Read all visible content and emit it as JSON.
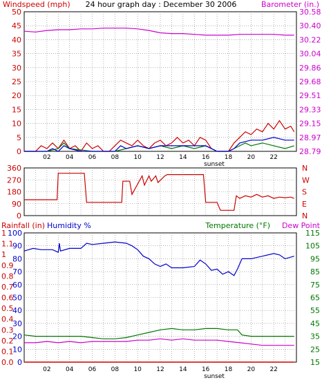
{
  "title": "24 hour graph day : December 30 2006",
  "colors": {
    "red": "#cc0000",
    "magenta": "#cc00cc",
    "blue": "#0000cc",
    "green": "#007700",
    "grid": "#808080",
    "text": "#000000"
  },
  "chart_data": [
    {
      "type": "line",
      "id": "wind_baro",
      "left_label": "Windspeed (mph)",
      "right_label": "Barometer (in.)",
      "left_ticks": [
        "50",
        "45",
        "40",
        "35",
        "30",
        "25",
        "20",
        "15",
        "10",
        "5",
        "0"
      ],
      "right_ticks": [
        "30.58",
        "30.40",
        "30.22",
        "30.04",
        "29.86",
        "29.68",
        "29.51",
        "29.33",
        "29.15",
        "28.97",
        "28.79"
      ],
      "x_ticks": [
        "02",
        "04",
        "06",
        "08",
        "10",
        "12",
        "14",
        "16",
        "18",
        "20",
        "22"
      ],
      "x_note": "sunset",
      "ylim": [
        0,
        50
      ],
      "y2lim": [
        28.79,
        30.58
      ],
      "xlim": [
        0,
        24
      ],
      "barometer": {
        "x": [
          0,
          1,
          2,
          3,
          4,
          5,
          6,
          7,
          8,
          9,
          10,
          11,
          12,
          13,
          14,
          15,
          16,
          17,
          18,
          19,
          20,
          21,
          22,
          23,
          23.8
        ],
        "y": [
          30.33,
          30.32,
          30.34,
          30.35,
          30.35,
          30.36,
          30.36,
          30.37,
          30.37,
          30.37,
          30.36,
          30.34,
          30.31,
          30.3,
          30.3,
          30.29,
          30.28,
          30.28,
          30.28,
          30.29,
          30.29,
          30.29,
          30.29,
          30.28,
          30.28
        ]
      },
      "wind_gust": {
        "x": [
          0,
          1,
          1.5,
          2,
          2.5,
          3,
          3.5,
          4,
          4.5,
          5,
          5.5,
          6,
          6.5,
          7,
          7.5,
          8,
          8.5,
          9,
          9.5,
          10,
          10.5,
          11,
          11.5,
          12,
          12.5,
          13,
          13.5,
          14,
          14.5,
          15,
          15.5,
          16,
          16.5,
          17,
          17.5,
          18,
          18.5,
          19,
          19.5,
          20,
          20.5,
          21,
          21.5,
          22,
          22.5,
          23,
          23.5,
          23.8
        ],
        "y": [
          0,
          0,
          2,
          1,
          3,
          1,
          4,
          1,
          2,
          0,
          3,
          1,
          2,
          0,
          0,
          2,
          4,
          3,
          2,
          4,
          2,
          1,
          3,
          4,
          2,
          3,
          5,
          3,
          4,
          2,
          5,
          4,
          1,
          0,
          0,
          0,
          3,
          5,
          7,
          6,
          8,
          7,
          10,
          8,
          11,
          8,
          9,
          7
        ]
      },
      "wind_avg": {
        "x": [
          0,
          2,
          2.5,
          3,
          3.5,
          4,
          5,
          6,
          8,
          8.5,
          9,
          10,
          11,
          12,
          13,
          14,
          15,
          16,
          17,
          18,
          18.5,
          19,
          20,
          21,
          22,
          23,
          23.8
        ],
        "y": [
          0,
          0,
          1,
          0,
          2,
          1,
          0,
          0,
          0,
          2,
          1,
          2,
          1,
          2,
          2,
          2,
          2,
          2,
          0,
          0,
          1,
          3,
          4,
          4,
          5,
          4,
          4
        ]
      },
      "wind_dir_index": {
        "x": [
          0,
          2,
          3,
          3.5,
          4,
          6,
          8,
          9,
          10,
          11,
          12,
          13,
          14,
          15,
          16,
          17,
          18,
          18.5,
          19,
          19.5,
          20,
          21,
          22,
          23,
          23.8
        ],
        "y": [
          0,
          0,
          1,
          3,
          1,
          0,
          0,
          1,
          2,
          1,
          2,
          1,
          2,
          1,
          2,
          0,
          0,
          1,
          2,
          3,
          2,
          3,
          2,
          1,
          2
        ]
      }
    },
    {
      "type": "line",
      "id": "direction",
      "left_ticks": [
        "360",
        "270",
        "180",
        "90",
        "0"
      ],
      "right_ticks": [
        "N",
        "W",
        "S",
        "E",
        "N"
      ],
      "ylim": [
        0,
        360
      ],
      "xlim": [
        0,
        24
      ],
      "direction": {
        "x": [
          0,
          2.9,
          3.0,
          5.3,
          5.5,
          8.6,
          8.7,
          9.3,
          9.5,
          10.4,
          10.6,
          11.0,
          11.2,
          11.6,
          11.8,
          12.4,
          12.6,
          15.8,
          16.0,
          17.0,
          17.3,
          17.5,
          18.5,
          18.7,
          19.0,
          19.5,
          20.0,
          20.5,
          21.0,
          21.5,
          22.0,
          22.5,
          23.0,
          23.5,
          23.8
        ],
        "y": [
          120,
          120,
          320,
          320,
          100,
          100,
          260,
          260,
          160,
          300,
          230,
          300,
          260,
          300,
          250,
          300,
          310,
          310,
          100,
          100,
          40,
          40,
          40,
          150,
          130,
          150,
          140,
          160,
          140,
          150,
          130,
          140,
          135,
          140,
          130
        ]
      }
    },
    {
      "type": "line",
      "id": "rain_hum_temp",
      "left_label_rain": "Rainfall (in)",
      "left_label_humidity": "Humidity %",
      "right_label_temp": "Temperature (°F)",
      "right_label_dew": "Dew Point",
      "rain_ticks": [
        "1",
        "1.1",
        "1",
        "0.9",
        "0.8",
        "0.7",
        "0.6",
        "0.5",
        "0.4",
        "0.3",
        "0.2",
        "0.1",
        "0.0"
      ],
      "humidity_ticks": [
        "100",
        "90",
        "80",
        "70",
        "60",
        "50",
        "40",
        "30",
        "20",
        "10",
        "0"
      ],
      "temp_ticks": [
        "115",
        "105",
        "95",
        "85",
        "75",
        "65",
        "55",
        "45",
        "35",
        "25",
        "15"
      ],
      "x_ticks": [
        "02",
        "04",
        "06",
        "08",
        "10",
        "12",
        "14",
        "16",
        "18",
        "20",
        "22"
      ],
      "x_note": "sunset",
      "humidity_lim": [
        0,
        100
      ],
      "temp_lim": [
        15,
        115
      ],
      "xlim": [
        0,
        24
      ],
      "humidity": {
        "x": [
          0,
          0.8,
          1.5,
          2.5,
          3.0,
          3.1,
          3.2,
          4,
          5,
          5.5,
          6,
          7,
          8,
          9,
          9.5,
          10,
          10.5,
          11,
          11.5,
          12,
          12.5,
          13,
          14,
          15,
          15.5,
          16,
          16.5,
          17,
          17.5,
          18,
          18.5,
          18.8,
          19.2,
          20,
          21,
          22,
          22.5,
          23,
          23.8
        ],
        "y": [
          86,
          88,
          87,
          87,
          85,
          92,
          86,
          88,
          88,
          92,
          91,
          92,
          93,
          92,
          90,
          87,
          82,
          80,
          76,
          74,
          76,
          73,
          73,
          74,
          79,
          76,
          71,
          72,
          68,
          70,
          67,
          72,
          80,
          80,
          82,
          84,
          83,
          80,
          82
        ]
      },
      "temperature": {
        "x": [
          0,
          1,
          2,
          3,
          4,
          5,
          6,
          7,
          8,
          9,
          10,
          11,
          12,
          13,
          14,
          15,
          16,
          17,
          18,
          18.8,
          19.2,
          20,
          21,
          22,
          23,
          23.8
        ],
        "y": [
          36,
          35,
          35,
          35,
          35,
          35,
          34,
          33,
          33,
          34,
          36,
          38,
          40,
          41,
          40,
          40,
          41,
          41,
          40,
          40,
          36,
          35,
          35,
          35,
          35,
          35
        ]
      },
      "dew_point": {
        "x": [
          0,
          1,
          2,
          3,
          4,
          5,
          6,
          7,
          8,
          9,
          10,
          11,
          12,
          13,
          14,
          15,
          16,
          17,
          18,
          19,
          20,
          21,
          22,
          23,
          23.8
        ],
        "y": [
          30,
          30,
          31,
          30,
          31,
          30,
          31,
          31,
          31,
          31,
          32,
          32,
          33,
          32,
          33,
          32,
          32,
          32,
          31,
          30,
          29,
          28,
          28,
          28,
          28
        ]
      },
      "rainfall": {
        "x": [
          0,
          23.8
        ],
        "y": [
          0,
          0
        ]
      }
    }
  ]
}
